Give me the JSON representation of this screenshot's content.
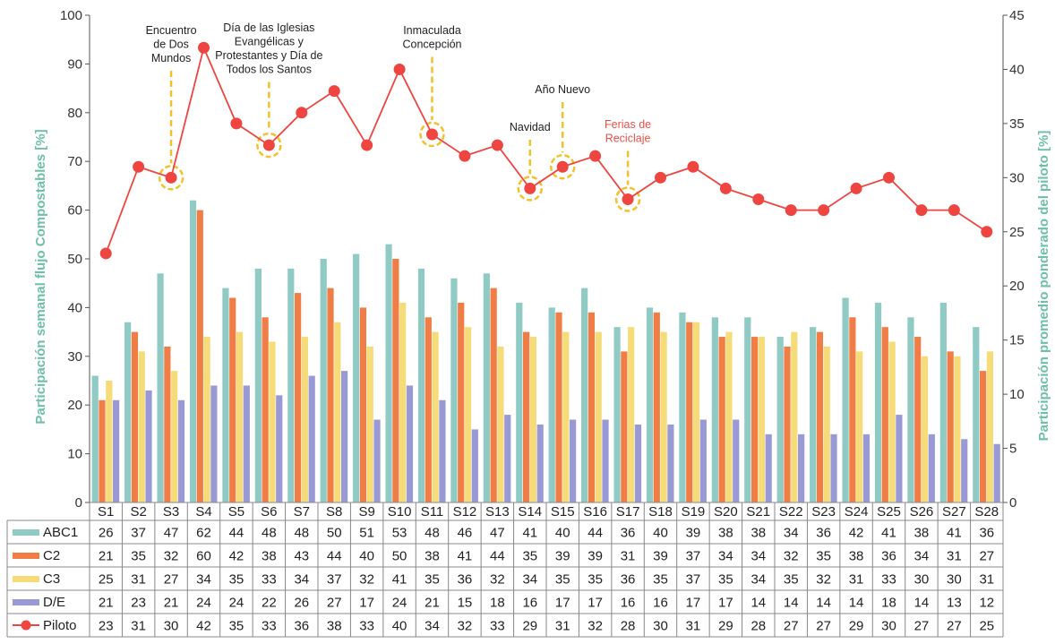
{
  "chart_data": {
    "type": "bar",
    "ylabel_left": "Participación semanal  flujo Compostables [%]",
    "ylabel_right": "Participación promedio ponderado del piloto [%]",
    "ylim_left": [
      0,
      100
    ],
    "yticks_left": [
      0,
      10,
      20,
      30,
      40,
      50,
      60,
      70,
      80,
      90,
      100
    ],
    "ylim_right": [
      0,
      45
    ],
    "yticks_right": [
      0,
      5,
      10,
      15,
      20,
      25,
      30,
      35,
      40,
      45
    ],
    "categories": [
      "S1",
      "S2",
      "S3",
      "S4",
      "S5",
      "S6",
      "S7",
      "S8",
      "S9",
      "S10",
      "S11",
      "S12",
      "S13",
      "S14",
      "S15",
      "S16",
      "S17",
      "S18",
      "S19",
      "S20",
      "S21",
      "S22",
      "S23",
      "S24",
      "S25",
      "S26",
      "S27",
      "S28"
    ],
    "series": [
      {
        "name": "ABC1",
        "kind": "bar",
        "axis": "left",
        "color": "#8fcbc4",
        "values": [
          26,
          37,
          47,
          62,
          44,
          48,
          48,
          50,
          51,
          53,
          48,
          46,
          47,
          41,
          40,
          44,
          36,
          40,
          39,
          38,
          38,
          34,
          36,
          42,
          41,
          38,
          41,
          36
        ]
      },
      {
        "name": "C2",
        "kind": "bar",
        "axis": "left",
        "color": "#ef7d45",
        "values": [
          21,
          35,
          32,
          60,
          42,
          38,
          43,
          44,
          40,
          50,
          38,
          41,
          44,
          35,
          39,
          39,
          31,
          39,
          37,
          34,
          34,
          32,
          35,
          38,
          36,
          34,
          31,
          27
        ]
      },
      {
        "name": "C3",
        "kind": "bar",
        "axis": "left",
        "color": "#f5dc78",
        "values": [
          25,
          31,
          27,
          34,
          35,
          33,
          34,
          37,
          32,
          41,
          35,
          36,
          32,
          34,
          35,
          35,
          36,
          35,
          37,
          35,
          34,
          35,
          32,
          31,
          33,
          30,
          30,
          31
        ]
      },
      {
        "name": "D/E",
        "kind": "bar",
        "axis": "left",
        "color": "#9999d6",
        "values": [
          21,
          23,
          21,
          24,
          24,
          22,
          26,
          27,
          17,
          24,
          21,
          15,
          18,
          16,
          17,
          17,
          16,
          16,
          17,
          17,
          14,
          14,
          14,
          14,
          18,
          14,
          13,
          12
        ]
      },
      {
        "name": "Piloto",
        "kind": "line",
        "axis": "right",
        "color": "#ee4540",
        "values": [
          23,
          31,
          30,
          42,
          35,
          33,
          36,
          38,
          33,
          40,
          34,
          32,
          33,
          29,
          31,
          32,
          28,
          30,
          31,
          29,
          28,
          27,
          27,
          29,
          30,
          27,
          27,
          25
        ]
      }
    ],
    "annotations": [
      {
        "text": "Encuentro de Dos Mundos",
        "lines": [
          "Encuentro",
          "de Dos",
          "Mundos"
        ],
        "week": "S3",
        "color": "#222222"
      },
      {
        "text": "Día de las Iglesias Evangélicas y Protestantes y Día de Todos los Santos",
        "lines": [
          "Día de las Iglesias",
          "Evangélicas y",
          "Protestantes y Día de",
          "Todos los Santos"
        ],
        "week": "S6",
        "color": "#222222"
      },
      {
        "text": "Inmaculada Concepción",
        "lines": [
          "Inmaculada",
          "Concepción"
        ],
        "week": "S11",
        "color": "#222222"
      },
      {
        "text": "Navidad",
        "lines": [
          "Navidad"
        ],
        "week": "S14",
        "color": "#222222"
      },
      {
        "text": "Año Nuevo",
        "lines": [
          "Año Nuevo"
        ],
        "week": "S15",
        "color": "#222222"
      },
      {
        "text": "Ferias de Reciclaje",
        "lines": [
          "Ferias de",
          "Reciclaje"
        ],
        "week": "S17",
        "color": "#e8504a"
      }
    ],
    "highlight_color": "#f2c12e",
    "table": true,
    "grid": false
  }
}
